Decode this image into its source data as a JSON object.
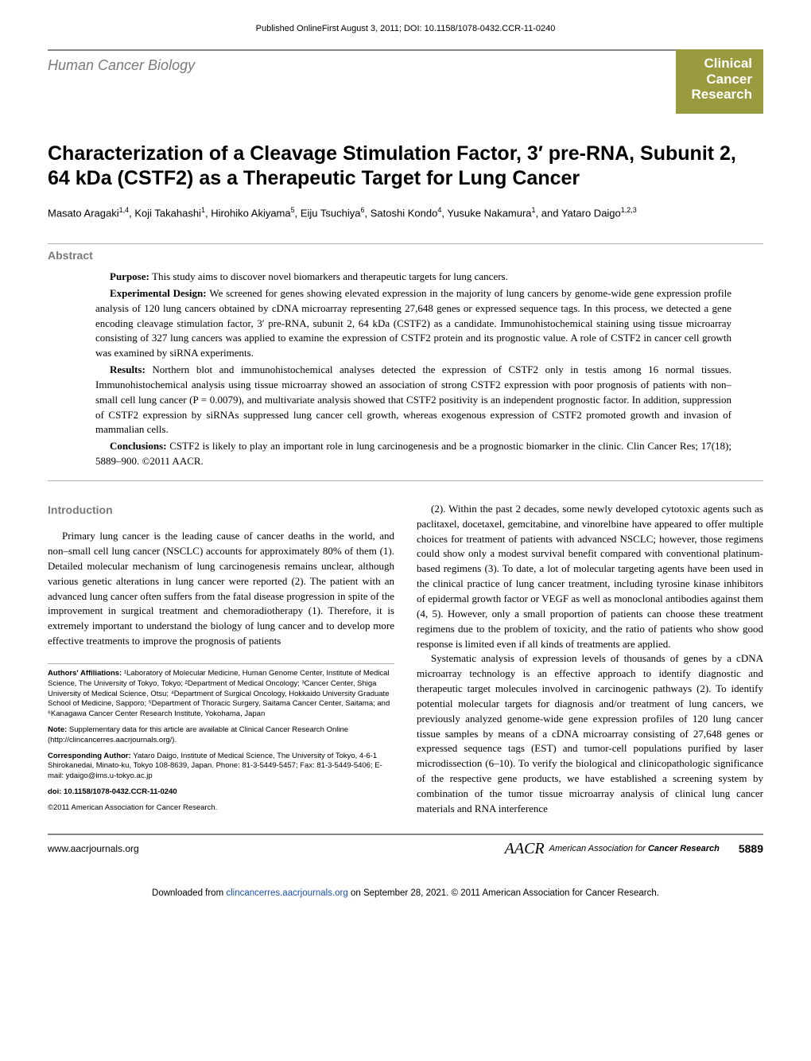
{
  "header_line": "Published OnlineFirst August 3, 2011; DOI: 10.1158/1078-0432.CCR-11-0240",
  "section_label": "Human Cancer Biology",
  "journal_box": {
    "line1": "Clinical",
    "line2": "Cancer",
    "line3": "Research",
    "bg_color": "#9a9a3f",
    "text_color": "#ffffff"
  },
  "title": "Characterization of a Cleavage Stimulation Factor, 3′ pre-RNA, Subunit 2, 64 kDa (CSTF2) as a Therapeutic Target for Lung Cancer",
  "authors_html": "Masato Aragaki<sup>1,4</sup>, Koji Takahashi<sup>1</sup>, Hirohiko Akiyama<sup>5</sup>, Eiju Tsuchiya<sup>6</sup>, Satoshi Kondo<sup>4</sup>, Yusuke Nakamura<sup>1</sup>, and Yataro Daigo<sup>1,2,3</sup>",
  "abstract": {
    "label": "Abstract",
    "purpose": "This study aims to discover novel biomarkers and therapeutic targets for lung cancers.",
    "design": "We screened for genes showing elevated expression in the majority of lung cancers by genome-wide gene expression profile analysis of 120 lung cancers obtained by cDNA microarray representing 27,648 genes or expressed sequence tags. In this process, we detected a gene encoding cleavage stimulation factor, 3′ pre-RNA, subunit 2, 64 kDa (CSTF2) as a candidate. Immunohistochemical staining using tissue microarray consisting of 327 lung cancers was applied to examine the expression of CSTF2 protein and its prognostic value. A role of CSTF2 in cancer cell growth was examined by siRNA experiments.",
    "results": "Northern blot and immunohistochemical analyses detected the expression of CSTF2 only in testis among 16 normal tissues. Immunohistochemical analysis using tissue microarray showed an association of strong CSTF2 expression with poor prognosis of patients with non–small cell lung cancer (P = 0.0079), and multivariate analysis showed that CSTF2 positivity is an independent prognostic factor. In addition, suppression of CSTF2 expression by siRNAs suppressed lung cancer cell growth, whereas exogenous expression of CSTF2 promoted growth and invasion of mammalian cells.",
    "conclusions": "CSTF2 is likely to play an important role in lung carcinogenesis and be a prognostic biomarker in the clinic. Clin Cancer Res; 17(18); 5889–900. ©2011 AACR."
  },
  "introduction": {
    "label": "Introduction",
    "p1": "Primary lung cancer is the leading cause of cancer deaths in the world, and non–small cell lung cancer (NSCLC) accounts for approximately 80% of them (1). Detailed molecular mechanism of lung carcinogenesis remains unclear, although various genetic alterations in lung cancer were reported (2). The patient with an advanced lung cancer often suffers from the fatal disease progression in spite of the improvement in surgical treatment and chemoradiotherapy (1). Therefore, it is extremely important to understand the biology of lung cancer and to develop more effective treatments to improve the prognosis of patients",
    "p2": "(2). Within the past 2 decades, some newly developed cytotoxic agents such as paclitaxel, docetaxel, gemcitabine, and vinorelbine have appeared to offer multiple choices for treatment of patients with advanced NSCLC; however, those regimens could show only a modest survival benefit compared with conventional platinum-based regimens (3). To date, a lot of molecular targeting agents have been used in the clinical practice of lung cancer treatment, including tyrosine kinase inhibitors of epidermal growth factor or VEGF as well as monoclonal antibodies against them (4, 5). However, only a small proportion of patients can choose these treatment regimens due to the problem of toxicity, and the ratio of patients who show good response is limited even if all kinds of treatments are applied.",
    "p3": "Systematic analysis of expression levels of thousands of genes by a cDNA microarray technology is an effective approach to identify diagnostic and therapeutic target molecules involved in carcinogenic pathways (2). To identify potential molecular targets for diagnosis and/or treatment of lung cancers, we previously analyzed genome-wide gene expression profiles of 120 lung cancer tissue samples by means of a cDNA microarray consisting of 27,648 genes or expressed sequence tags (EST) and tumor-cell populations purified by laser microdissection (6–10). To verify the biological and clinicopathologic significance of the respective gene products, we have established a screening system by combination of the tumor tissue microarray analysis of clinical lung cancer materials and RNA interference"
  },
  "footnotes": {
    "affiliations": "Authors' Affiliations: ¹Laboratory of Molecular Medicine, Human Genome Center, Institute of Medical Science, The University of Tokyo, Tokyo; ²Department of Medical Oncology; ³Cancer Center, Shiga University of Medical Science, Otsu; ⁴Department of Surgical Oncology, Hokkaido University Graduate School of Medicine, Sapporo; ⁵Department of Thoracic Surgery, Saitama Cancer Center, Saitama; and ⁶Kanagawa Cancer Center Research Institute, Yokohama, Japan",
    "note": "Note: Supplementary data for this article are available at Clinical Cancer Research Online (http://clincancerres.aacrjournals.org/).",
    "corresponding": "Corresponding Author: Yataro Daigo, Institute of Medical Science, The University of Tokyo, 4-6-1 Shirokanedai, Minato-ku, Tokyo 108-8639, Japan. Phone: 81-3-5449-5457; Fax: 81-3-5449-5406; E-mail: ydaigo@ims.u-tokyo.ac.jp",
    "doi": "doi: 10.1158/1078-0432.CCR-11-0240",
    "copyright": "©2011 American Association for Cancer Research."
  },
  "footer": {
    "url": "www.aacrjournals.org",
    "logo_text": "AACR",
    "assoc_text": "American Association for Cancer Research",
    "page_number": "5889"
  },
  "download": {
    "prefix": "Downloaded from ",
    "link_text": "clincancerres.aacrjournals.org",
    "suffix": " on September 28, 2021. © 2011 American Association for Cancer Research."
  },
  "colors": {
    "rule": "#888888",
    "light_rule": "#b0b0b0",
    "gray_text": "#7a7a7a",
    "link": "#1a4fad"
  },
  "typography": {
    "body_font": "Georgia, Times New Roman, serif",
    "sans_font": "Arial, sans-serif",
    "title_fontsize": 25,
    "body_fontsize": 13,
    "footnote_fontsize": 9.5
  }
}
